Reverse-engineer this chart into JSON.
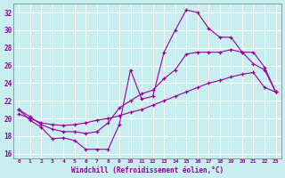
{
  "xlabel": "Windchill (Refroidissement éolien,°C)",
  "background_color": "#c8eef0",
  "line_color": "#990099",
  "grid_color": "#ffffff",
  "xlim": [
    -0.5,
    23.5
  ],
  "ylim": [
    15.5,
    33.0
  ],
  "xticks": [
    0,
    1,
    2,
    3,
    4,
    5,
    6,
    7,
    8,
    9,
    10,
    11,
    12,
    13,
    14,
    15,
    16,
    17,
    18,
    19,
    20,
    21,
    22,
    23
  ],
  "yticks": [
    16,
    18,
    20,
    22,
    24,
    26,
    28,
    30,
    32
  ],
  "line1_x": [
    0,
    1,
    2,
    3,
    4,
    5,
    6,
    7,
    8,
    9,
    10,
    11,
    12,
    13,
    14,
    15,
    16,
    17,
    18,
    19,
    20,
    21,
    22,
    23
  ],
  "line1_y": [
    21.0,
    19.8,
    19.0,
    17.7,
    17.8,
    17.5,
    16.5,
    16.5,
    16.5,
    19.3,
    25.5,
    22.2,
    22.5,
    27.5,
    30.0,
    32.3,
    32.0,
    30.2,
    29.2,
    29.2,
    27.5,
    26.2,
    25.5,
    23.0
  ],
  "line2_x": [
    0,
    1,
    2,
    3,
    4,
    5,
    6,
    7,
    8,
    9,
    10,
    11,
    12,
    13,
    14,
    15,
    16,
    17,
    18,
    19,
    20,
    21,
    22,
    23
  ],
  "line2_y": [
    21.0,
    20.2,
    19.3,
    18.8,
    18.5,
    18.5,
    18.3,
    18.5,
    19.5,
    21.2,
    22.0,
    22.8,
    23.2,
    24.5,
    25.5,
    27.3,
    27.5,
    27.5,
    27.5,
    27.8,
    27.5,
    27.5,
    25.8,
    23.0
  ],
  "line3_x": [
    0,
    1,
    2,
    3,
    4,
    5,
    6,
    7,
    8,
    9,
    10,
    11,
    12,
    13,
    14,
    15,
    16,
    17,
    18,
    19,
    20,
    21,
    22,
    23
  ],
  "line3_y": [
    20.5,
    20.0,
    19.5,
    19.3,
    19.2,
    19.3,
    19.5,
    19.8,
    20.0,
    20.3,
    20.7,
    21.0,
    21.5,
    22.0,
    22.5,
    23.0,
    23.5,
    24.0,
    24.3,
    24.7,
    25.0,
    25.2,
    23.5,
    23.0
  ]
}
